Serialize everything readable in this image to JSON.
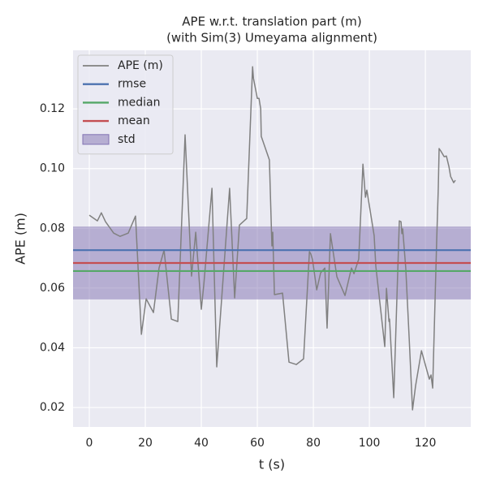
{
  "chart_data": {
    "type": "line",
    "title": [
      "APE w.r.t. translation part (m)",
      "(with Sim(3) Umeyama alignment)"
    ],
    "xlabel": "t (s)",
    "ylabel": "APE (m)",
    "xlim": [
      -5.8,
      136.2
    ],
    "ylim": [
      0.0135,
      0.1396
    ],
    "xticks": [
      0,
      20,
      40,
      60,
      80,
      100,
      120
    ],
    "yticks": [
      0.02,
      0.04,
      0.06,
      0.08,
      {
        "value": 0.1,
        "label": "0.10"
      },
      0.12
    ],
    "grid": true,
    "legend": "upper left",
    "series": [
      {
        "name": "APE (m)",
        "color": "#808080",
        "x": [
          0,
          2.9,
          4.3,
          5.8,
          8.7,
          11,
          13.9,
          16.5,
          18.6,
          20.3,
          22.9,
          24.9,
          26.7,
          29.3,
          31.6,
          34.2,
          36.5,
          38,
          40,
          40.9,
          43.8,
          45.5,
          50.1,
          51.9,
          53.6,
          56.2,
          58.3,
          58.6,
          60,
          60.6,
          61.2,
          61.4,
          64.3,
          65.2,
          65.5,
          66.1,
          69,
          71.3,
          73.9,
          76.5,
          78.6,
          79.1,
          79.7,
          81.2,
          82.6,
          84.1,
          84.9,
          86.1,
          88.4,
          91.3,
          93.6,
          94.5,
          96.2,
          97.7,
          98.6,
          99.1,
          101.7,
          102.3,
          105.5,
          106.1,
          107,
          107.2,
          108.7,
          110.7,
          111.3,
          111.6,
          111.9,
          113,
          114.2,
          115.4,
          116.5,
          118.6,
          121.4,
          122,
          122.6,
          124,
          124.6,
          124.9,
          125.5,
          126.7,
          127.5,
          128.4,
          129,
          130.1,
          130.7
        ],
        "values": [
          0.0844,
          0.0825,
          0.0852,
          0.0822,
          0.0784,
          0.0773,
          0.0784,
          0.0841,
          0.0445,
          0.0564,
          0.0518,
          0.0667,
          0.0727,
          0.0496,
          0.0488,
          0.1113,
          0.064,
          0.0787,
          0.0529,
          0.0613,
          0.0934,
          0.0336,
          0.0934,
          0.0567,
          0.0811,
          0.0833,
          0.1341,
          0.1303,
          0.1235,
          0.1235,
          0.12,
          0.1108,
          0.1029,
          0.0741,
          0.0787,
          0.0578,
          0.0583,
          0.0352,
          0.0344,
          0.0363,
          0.0722,
          0.0714,
          0.0695,
          0.0594,
          0.0651,
          0.0667,
          0.0466,
          0.0782,
          0.0638,
          0.0575,
          0.0667,
          0.0648,
          0.0697,
          0.1015,
          0.0904,
          0.0928,
          0.0776,
          0.0673,
          0.0404,
          0.0599,
          0.0488,
          0.0496,
          0.0233,
          0.0825,
          0.0822,
          0.0782,
          0.0798,
          0.0665,
          0.0434,
          0.0192,
          0.0273,
          0.039,
          0.0295,
          0.0309,
          0.0265,
          0.0749,
          0.0934,
          0.1067,
          0.1059,
          0.104,
          0.1042,
          0.1007,
          0.0974,
          0.0953,
          0.0961
        ]
      },
      {
        "name": "rmse",
        "color": "#4c72b0",
        "value": 0.0727
      },
      {
        "name": "median",
        "color": "#55a868",
        "value": 0.0657
      },
      {
        "name": "mean",
        "color": "#c44e52",
        "value": 0.0684
      },
      {
        "name": "std",
        "color": "#8172b2",
        "value": 0.0122
      }
    ]
  }
}
